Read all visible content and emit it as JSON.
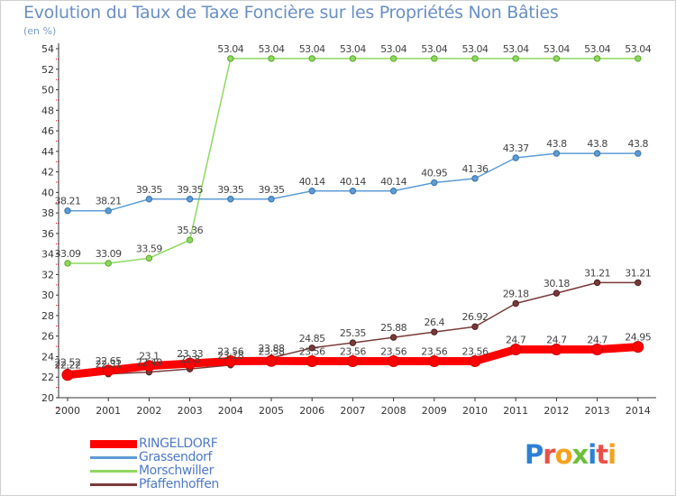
{
  "header": {
    "title": "Evolution du Taux de Taxe Foncière sur les Propriétés Non Bâties",
    "subtitle": "(en %)"
  },
  "brand": {
    "letters": [
      "P",
      "r",
      "o",
      "x",
      "i",
      "t",
      "i"
    ],
    "colors": [
      "#2e7fd6",
      "#e8504a",
      "#f5a21e",
      "#6cbf3a",
      "#2e7fd6",
      "#e8504a",
      "#f5a21e"
    ]
  },
  "chart_data": {
    "type": "line",
    "title": "Evolution du Taux de Taxe Foncière sur les Propriétés Non Bâties",
    "ylabel": "(en %)",
    "xlabel": "",
    "x": [
      "2000",
      "2001",
      "2002",
      "2003",
      "2004",
      "2005",
      "2006",
      "2007",
      "2008",
      "2009",
      "2010",
      "2011",
      "2012",
      "2013",
      "2014"
    ],
    "ylim": [
      20,
      54
    ],
    "yticks": [
      "20",
      "22",
      "24",
      "26",
      "28",
      "30",
      "32",
      "34",
      "36",
      "38",
      "40",
      "42",
      "44",
      "46",
      "48",
      "50",
      "52",
      "54"
    ],
    "grid": false,
    "legend_position": "bottom-left",
    "series": [
      {
        "name": "RINGELDORF",
        "color": "#ff0000",
        "values": [
          22.22,
          22.65,
          23.1,
          23.33,
          23.56,
          23.58,
          23.56,
          23.56,
          23.56,
          23.56,
          23.56,
          24.7,
          24.7,
          24.7,
          24.95
        ],
        "labels": [
          "22.22",
          "22.65",
          "23.1",
          "23.33",
          "23.56",
          "23.58",
          "23.56",
          "23.56",
          "23.56",
          "23.56",
          "23.56",
          "24.7",
          "24.7",
          "24.7",
          "24.95"
        ]
      },
      {
        "name": "Grassendorf",
        "color": "#5d9cd5",
        "values": [
          38.21,
          38.21,
          39.35,
          39.35,
          39.35,
          39.35,
          40.14,
          40.14,
          40.14,
          40.95,
          41.36,
          43.37,
          43.8,
          43.8,
          43.8
        ],
        "labels": [
          "38.21",
          "38.21",
          "39.35",
          "39.35",
          "39.35",
          "39.35",
          "40.14",
          "40.14",
          "40.14",
          "40.95",
          "41.36",
          "43.37",
          "43.8",
          "43.8",
          "43.8"
        ]
      },
      {
        "name": "Morschwiller",
        "color": "#8ed85f",
        "values": [
          33.09,
          33.09,
          33.59,
          35.36,
          53.04,
          53.04,
          53.04,
          53.04,
          53.04,
          53.04,
          53.04,
          53.04,
          53.04,
          53.04,
          53.04
        ],
        "labels": [
          "33.09",
          "33.09",
          "33.59",
          "35.36",
          "53.04",
          "53.04",
          "53.04",
          "53.04",
          "53.04",
          "53.04",
          "53.04",
          "53.04",
          "53.04",
          "53.04",
          "53.04"
        ]
      },
      {
        "name": "Pfaffenhoffen",
        "color": "#7a3a3a",
        "values": [
          22.52,
          22.31,
          22.49,
          22.8,
          23.18,
          23.88,
          24.85,
          25.35,
          25.88,
          26.4,
          26.92,
          29.18,
          30.18,
          31.21,
          31.21
        ],
        "labels": [
          "22.52",
          "22.31",
          "22.49",
          "22.8",
          "23.18",
          "23.88",
          "24.85",
          "25.35",
          "25.88",
          "26.4",
          "26.92",
          "29.18",
          "30.18",
          "31.21",
          "31.21"
        ]
      }
    ]
  }
}
